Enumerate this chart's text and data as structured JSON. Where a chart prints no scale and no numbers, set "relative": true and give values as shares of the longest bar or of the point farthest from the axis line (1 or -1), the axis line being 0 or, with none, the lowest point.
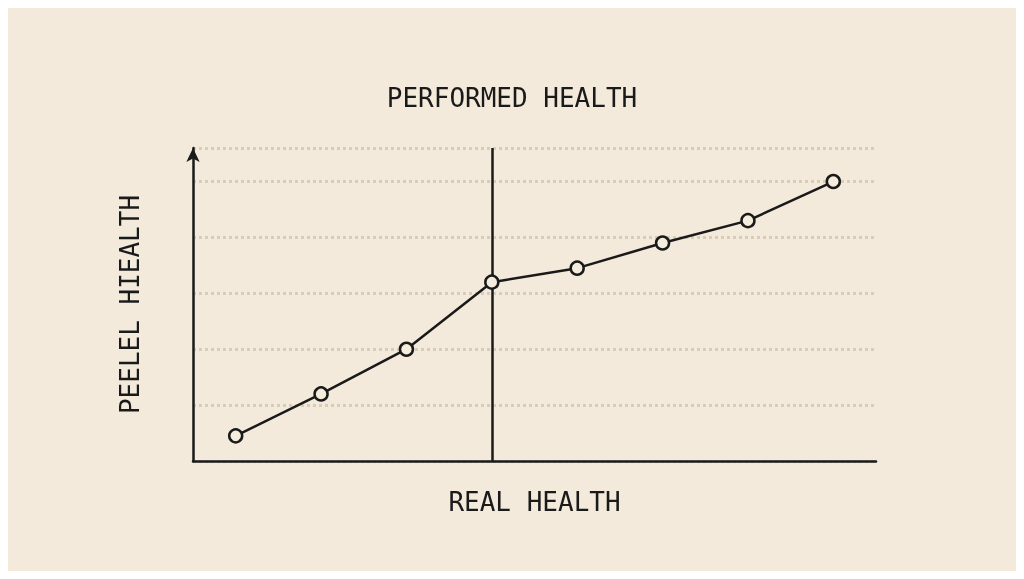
{
  "chart_data": {
    "type": "line",
    "title": "PERFORMED HEALTH",
    "xlabel": "REAL HEALTH",
    "ylabel": "PEELEL HIEALTH",
    "relative": true,
    "tick_labels": false,
    "grid": "y",
    "marker": "circle",
    "line_style": "solid",
    "categories": [
      null,
      null,
      null,
      null,
      null,
      null,
      null,
      null
    ],
    "series": [
      {
        "color": "#1a1a1a",
        "values": [
          0.09,
          0.24,
          0.4,
          0.64,
          0.69,
          0.78,
          0.86,
          1
        ]
      }
    ]
  }
}
